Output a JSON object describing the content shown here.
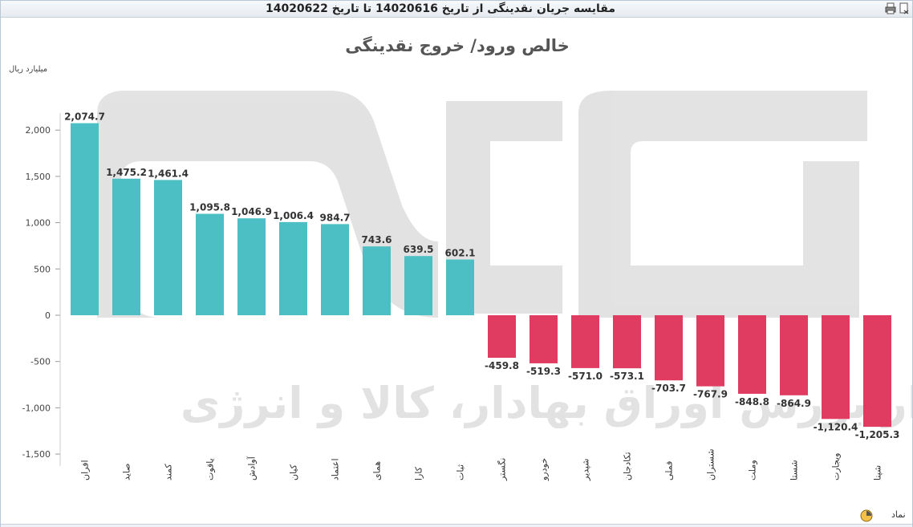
{
  "window": {
    "title": "مقایسه جریان نقدینگی از تاریخ 14020616 تا تاریخ 14020622",
    "icons": [
      "print-icon",
      "export-icon"
    ]
  },
  "chart_data": {
    "type": "bar",
    "title": "خالص ورود/ خروج نقدینگی",
    "ylabel": "میلیارد ریال",
    "xlabel": "نماد",
    "ylim": [
      -1500,
      2250
    ],
    "yticks": [
      2000,
      1500,
      1000,
      500,
      0,
      -500,
      -1000,
      -1500
    ],
    "ytick_labels": [
      "2,000",
      "1,500",
      "1,000",
      "500",
      "0",
      "-500",
      "-1,000",
      "-1,500"
    ],
    "grid": false,
    "categories": [
      "افران",
      "صاید",
      "کمند",
      "یاقوت",
      "آوادش",
      "کیان",
      "اعتماد",
      "همای",
      "کارا",
      "ثبات",
      "نگستر",
      "خودرو",
      "شپدیر",
      "تکادجان",
      "فملی",
      "شستران",
      "وملت",
      "شستا",
      "ویجارت",
      "شپنا"
    ],
    "values": [
      2074.7,
      1475.2,
      1461.4,
      1095.8,
      1046.9,
      1006.4,
      984.7,
      743.6,
      639.5,
      602.1,
      -459.8,
      -519.3,
      -571.0,
      -573.1,
      -703.7,
      -767.9,
      -848.8,
      -864.9,
      -1120.4,
      -1205.3
    ],
    "value_labels": [
      "2,074.7",
      "1,475.2",
      "1,461.4",
      "1,095.8",
      "1,046.9",
      "1,006.4",
      "984.7",
      "743.6",
      "639.5",
      "602.1",
      "-459.8",
      "-519.3",
      "-571.0",
      "-573.1",
      "-703.7",
      "-767.9",
      "-848.8",
      "-864.9",
      "-1,120.4",
      "-1,205.3"
    ],
    "colors": {
      "positive": "#4cbfc4",
      "negative": "#e03c62"
    },
    "watermark": "کارگزار بورس اوراق بهادار، کالا و انرژی"
  }
}
